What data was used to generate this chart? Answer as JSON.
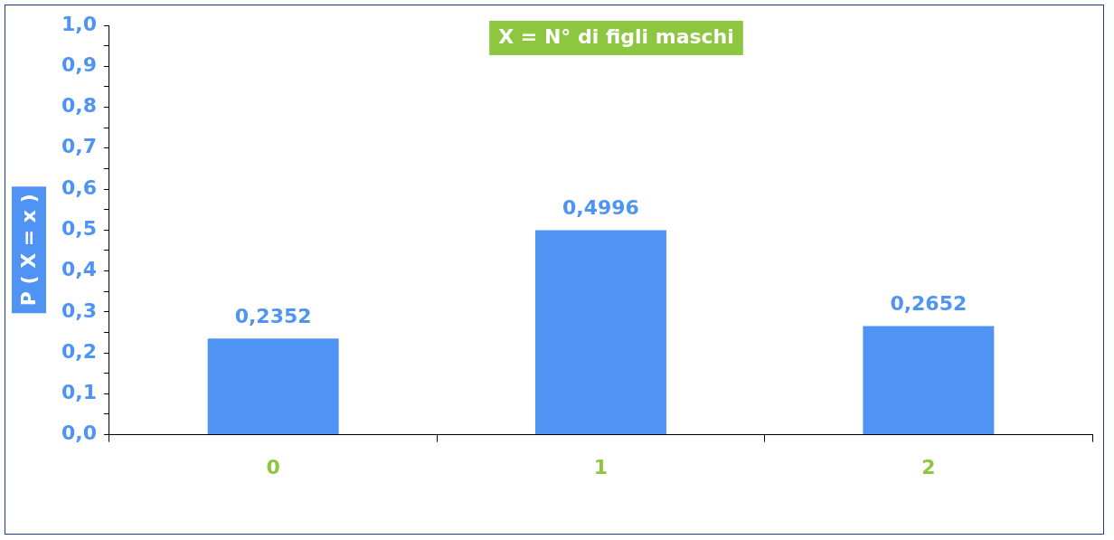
{
  "chart_data": {
    "type": "bar",
    "title": "X = N° di figli maschi",
    "ylabel": "P ( X = x )",
    "categories": [
      "0",
      "1",
      "2"
    ],
    "values": [
      0.2352,
      0.4996,
      0.2652
    ],
    "color": "#4f94f4",
    "ylim": [
      0,
      1
    ],
    "yticks": [
      {
        "value": 0,
        "label": "0,0"
      },
      {
        "value": 0.05,
        "label": null
      },
      {
        "value": 0.1,
        "label": "0,1"
      },
      {
        "value": 0.15,
        "label": null
      },
      {
        "value": 0.2,
        "label": "0,2"
      },
      {
        "value": 0.25,
        "label": null
      },
      {
        "value": 0.3,
        "label": "0,3"
      },
      {
        "value": 0.35,
        "label": null
      },
      {
        "value": 0.4,
        "label": "0,4"
      },
      {
        "value": 0.45,
        "label": null
      },
      {
        "value": 0.5,
        "label": "0,5"
      },
      {
        "value": 0.55,
        "label": null
      },
      {
        "value": 0.6,
        "label": "0,6"
      },
      {
        "value": 0.65,
        "label": null
      },
      {
        "value": 0.7,
        "label": "0,7"
      },
      {
        "value": 0.75,
        "label": null
      },
      {
        "value": 0.8,
        "label": "0,8"
      },
      {
        "value": 0.85,
        "label": null
      },
      {
        "value": 0.9,
        "label": "0,9"
      },
      {
        "value": 0.95,
        "label": null
      },
      {
        "value": 1,
        "label": "1,0"
      }
    ],
    "value_labels": [
      "0,2352",
      "0,4996",
      "0,2652"
    ],
    "grid": false,
    "legend": false
  }
}
